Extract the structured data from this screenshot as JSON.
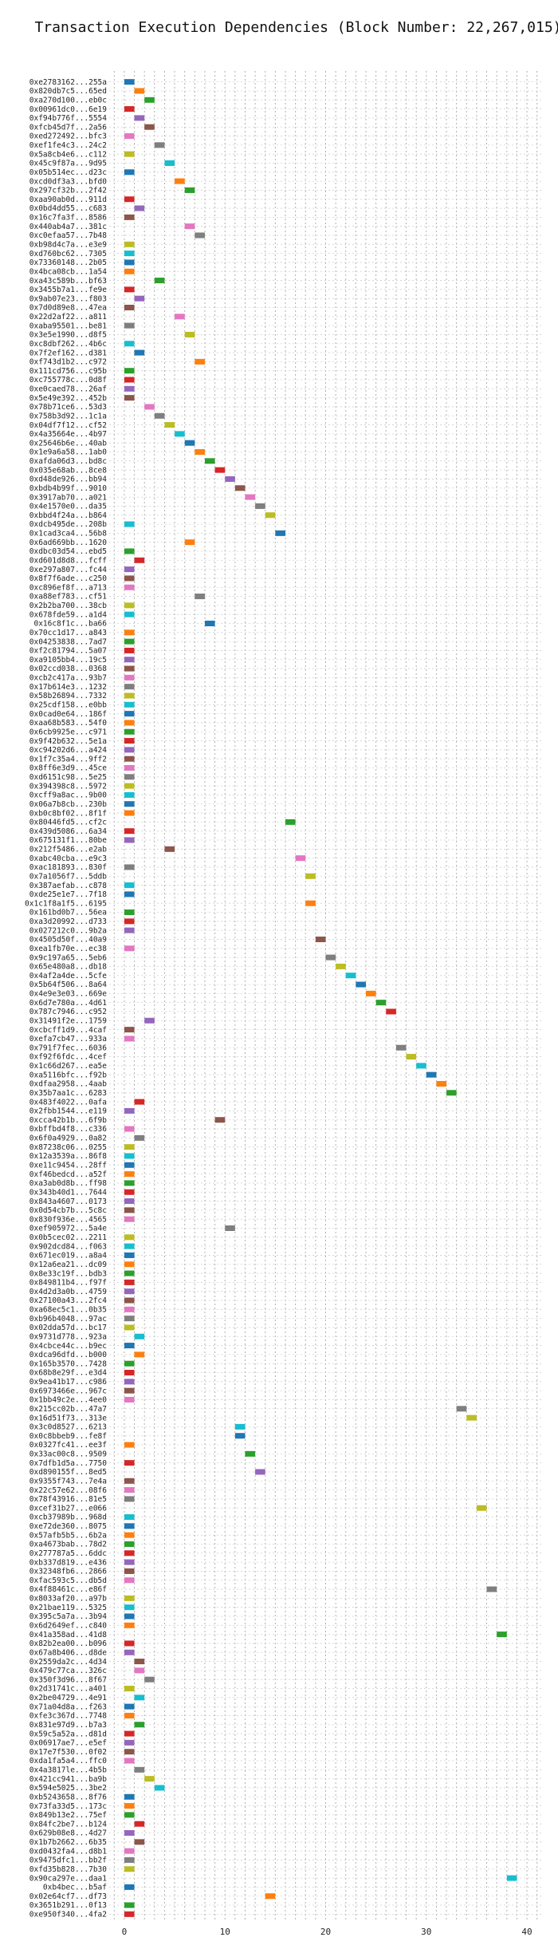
{
  "chart_data": {
    "type": "bar",
    "orientation": "horizontal",
    "title": "Transaction Execution Dependencies (Block Number: 22,267,015)",
    "xlabel": "",
    "ylabel": "",
    "xlim": [
      -1.5,
      41.5
    ],
    "xticks": [
      0,
      10,
      20,
      30,
      40
    ],
    "grid": true,
    "palette": [
      "#1f77b4",
      "#ff7f0e",
      "#2ca02c",
      "#d62728",
      "#9467bd",
      "#8c564b",
      "#e377c2",
      "#7f7f7f",
      "#bcbd22",
      "#17becf"
    ],
    "transactions": [
      {
        "hash": "0xe2783162...255a",
        "start": 0,
        "end": 1
      },
      {
        "hash": "0x820db7c5...65ed",
        "start": 1,
        "end": 2
      },
      {
        "hash": "0xa270d100...eb0c",
        "start": 2,
        "end": 3
      },
      {
        "hash": "0x00961dc0...6e19",
        "start": 0,
        "end": 1
      },
      {
        "hash": "0xf94b776f...5554",
        "start": 1,
        "end": 2
      },
      {
        "hash": "0xfcb45d7f...2a56",
        "start": 2,
        "end": 3
      },
      {
        "hash": "0xed272492...bfc3",
        "start": 0,
        "end": 1
      },
      {
        "hash": "0xef1fe4c3...24c2",
        "start": 3,
        "end": 4
      },
      {
        "hash": "0x5a8cb4e6...c112",
        "start": 0,
        "end": 1
      },
      {
        "hash": "0x45c9f87a...9d95",
        "start": 4,
        "end": 5
      },
      {
        "hash": "0x05b514ec...d23c",
        "start": 0,
        "end": 1
      },
      {
        "hash": "0xcd0df3a3...bfd0",
        "start": 5,
        "end": 6
      },
      {
        "hash": "0x297cf32b...2f42",
        "start": 6,
        "end": 7
      },
      {
        "hash": "0xaa90ab0d...911d",
        "start": 0,
        "end": 1
      },
      {
        "hash": "0x0bd4dd55...c683",
        "start": 1,
        "end": 2
      },
      {
        "hash": "0x16c7fa3f...8586",
        "start": 0,
        "end": 1
      },
      {
        "hash": "0x440ab4a7...381c",
        "start": 6,
        "end": 7
      },
      {
        "hash": "0xc0efaa57...7b48",
        "start": 7,
        "end": 8
      },
      {
        "hash": "0xb98d4c7a...e3e9",
        "start": 0,
        "end": 1
      },
      {
        "hash": "0xd760bc62...7305",
        "start": 0,
        "end": 1
      },
      {
        "hash": "0x73360148...2b05",
        "start": 0,
        "end": 1
      },
      {
        "hash": "0x4bca08cb...1a54",
        "start": 0,
        "end": 1
      },
      {
        "hash": "0xa43c589b...bf63",
        "start": 3,
        "end": 4
      },
      {
        "hash": "0x3455b7a1...fe9e",
        "start": 0,
        "end": 1
      },
      {
        "hash": "0x9ab07e23...f803",
        "start": 1,
        "end": 2
      },
      {
        "hash": "0x7d0d89e8...47ea",
        "start": 0,
        "end": 1
      },
      {
        "hash": "0x22d2af22...a811",
        "start": 5,
        "end": 6
      },
      {
        "hash": "0xaba95501...be81",
        "start": 0,
        "end": 1
      },
      {
        "hash": "0x3e5e1990...d8f5",
        "start": 6,
        "end": 7
      },
      {
        "hash": "0xc8dbf262...4b6c",
        "start": 0,
        "end": 1
      },
      {
        "hash": "0x7f2ef162...d381",
        "start": 1,
        "end": 2
      },
      {
        "hash": "0xf743d1b2...c972",
        "start": 7,
        "end": 8
      },
      {
        "hash": "0x111cd756...c95b",
        "start": 0,
        "end": 1
      },
      {
        "hash": "0xc755778c...0d8f",
        "start": 0,
        "end": 1
      },
      {
        "hash": "0xe0caed78...26af",
        "start": 0,
        "end": 1
      },
      {
        "hash": "0x5e49e392...452b",
        "start": 0,
        "end": 1
      },
      {
        "hash": "0x78b71ce6...53d3",
        "start": 2,
        "end": 3
      },
      {
        "hash": "0x758b3d92...1c1a",
        "start": 3,
        "end": 4
      },
      {
        "hash": "0x04df7f12...cf52",
        "start": 4,
        "end": 5
      },
      {
        "hash": "0x4a35664e...4b97",
        "start": 5,
        "end": 6
      },
      {
        "hash": "0x25646b6e...40ab",
        "start": 6,
        "end": 7
      },
      {
        "hash": "0x1e9a6a58...1ab0",
        "start": 7,
        "end": 8
      },
      {
        "hash": "0xafda06d3...bd8c",
        "start": 8,
        "end": 9
      },
      {
        "hash": "0x035e68ab...8ce8",
        "start": 9,
        "end": 10
      },
      {
        "hash": "0xd48de926...bb94",
        "start": 10,
        "end": 11
      },
      {
        "hash": "0xbdb4b99f...9010",
        "start": 11,
        "end": 12
      },
      {
        "hash": "0x3917ab70...a021",
        "start": 12,
        "end": 13
      },
      {
        "hash": "0x4e1570e0...da35",
        "start": 13,
        "end": 14
      },
      {
        "hash": "0xbbd4f24a...b864",
        "start": 14,
        "end": 15
      },
      {
        "hash": "0xdcb495de...208b",
        "start": 0,
        "end": 1
      },
      {
        "hash": "0x1cad3ca4...56b8",
        "start": 15,
        "end": 16
      },
      {
        "hash": "0x6ad669bb...1620",
        "start": 6,
        "end": 7
      },
      {
        "hash": "0xdbc03d54...ebd5",
        "start": 0,
        "end": 1
      },
      {
        "hash": "0xd601d8d8...fcff",
        "start": 1,
        "end": 2
      },
      {
        "hash": "0xe297a807...fc44",
        "start": 0,
        "end": 1
      },
      {
        "hash": "0x8f7f6ade...c250",
        "start": 0,
        "end": 1
      },
      {
        "hash": "0xc896ef8f...a713",
        "start": 0,
        "end": 1
      },
      {
        "hash": "0xa88ef783...cf51",
        "start": 7,
        "end": 8
      },
      {
        "hash": "0x2b2ba700...38cb",
        "start": 0,
        "end": 1
      },
      {
        "hash": "0x678fde59...a1d4",
        "start": 0,
        "end": 1
      },
      {
        "hash": "0x16c8f1c...ba66",
        "start": 8,
        "end": 9
      },
      {
        "hash": "0x70cc1d17...a843",
        "start": 0,
        "end": 1
      },
      {
        "hash": "0x04253838...7ad7",
        "start": 0,
        "end": 1
      },
      {
        "hash": "0xf2c81794...5a07",
        "start": 0,
        "end": 1
      },
      {
        "hash": "0xa9105bb4...19c5",
        "start": 0,
        "end": 1
      },
      {
        "hash": "0x02ccd038...0368",
        "start": 0,
        "end": 1
      },
      {
        "hash": "0xcb2c417a...93b7",
        "start": 0,
        "end": 1
      },
      {
        "hash": "0x17b614e3...1232",
        "start": 0,
        "end": 1
      },
      {
        "hash": "0x58b26894...7332",
        "start": 0,
        "end": 1
      },
      {
        "hash": "0x25cdf158...e0bb",
        "start": 0,
        "end": 1
      },
      {
        "hash": "0x0cad0e64...186f",
        "start": 0,
        "end": 1
      },
      {
        "hash": "0xaa68b583...54f0",
        "start": 0,
        "end": 1
      },
      {
        "hash": "0x6cb9925e...c971",
        "start": 0,
        "end": 1
      },
      {
        "hash": "0x9f42b632...5e1a",
        "start": 0,
        "end": 1
      },
      {
        "hash": "0xc94202d6...a424",
        "start": 0,
        "end": 1
      },
      {
        "hash": "0x1f7c35a4...9ff2",
        "start": 0,
        "end": 1
      },
      {
        "hash": "0x8ff6e3d9...45ce",
        "start": 0,
        "end": 1
      },
      {
        "hash": "0xd6151c98...5e25",
        "start": 0,
        "end": 1
      },
      {
        "hash": "0x394398c8...5972",
        "start": 0,
        "end": 1
      },
      {
        "hash": "0xcff9a8ac...9b00",
        "start": 0,
        "end": 1
      },
      {
        "hash": "0x06a7b8cb...230b",
        "start": 0,
        "end": 1
      },
      {
        "hash": "0xb0c8bf02...8f1f",
        "start": 0,
        "end": 1
      },
      {
        "hash": "0x80446fd5...cf2c",
        "start": 16,
        "end": 17
      },
      {
        "hash": "0x439d5086...6a34",
        "start": 0,
        "end": 1
      },
      {
        "hash": "0x675131f1...80be",
        "start": 0,
        "end": 1
      },
      {
        "hash": "0x212f5486...e2ab",
        "start": 4,
        "end": 5
      },
      {
        "hash": "0xabc40cba...e9c3",
        "start": 17,
        "end": 18
      },
      {
        "hash": "0xac181893...830f",
        "start": 0,
        "end": 1
      },
      {
        "hash": "0x7a1056f7...5ddb",
        "start": 18,
        "end": 19
      },
      {
        "hash": "0x387aefab...c878",
        "start": 0,
        "end": 1
      },
      {
        "hash": "0xde25e1e7...7f18",
        "start": 0,
        "end": 1
      },
      {
        "hash": "0x1c1f8a1f5...6195",
        "start": 18,
        "end": 19
      },
      {
        "hash": "0x161bd0b7...56ea",
        "start": 0,
        "end": 1
      },
      {
        "hash": "0xa3d20992...d733",
        "start": 0,
        "end": 1
      },
      {
        "hash": "0x027212c0...9b2a",
        "start": 0,
        "end": 1
      },
      {
        "hash": "0x4505d50f...40a9",
        "start": 19,
        "end": 20
      },
      {
        "hash": "0xea1fb70e...ec38",
        "start": 0,
        "end": 1
      },
      {
        "hash": "0x9c197a65...5eb6",
        "start": 20,
        "end": 21
      },
      {
        "hash": "0x65e480a8...db18",
        "start": 21,
        "end": 22
      },
      {
        "hash": "0x4af2a4de...5cfe",
        "start": 22,
        "end": 23
      },
      {
        "hash": "0x5b64f506...8a64",
        "start": 23,
        "end": 24
      },
      {
        "hash": "0x4e9e3e03...669e",
        "start": 24,
        "end": 25
      },
      {
        "hash": "0x6d7e780a...4d61",
        "start": 25,
        "end": 26
      },
      {
        "hash": "0x787c7946...c952",
        "start": 26,
        "end": 27
      },
      {
        "hash": "0x31491f2e...1759",
        "start": 2,
        "end": 3
      },
      {
        "hash": "0xcbcff1d9...4caf",
        "start": 0,
        "end": 1
      },
      {
        "hash": "0xefa7cb47...933a",
        "start": 0,
        "end": 1
      },
      {
        "hash": "0x791f7fec...6036",
        "start": 27,
        "end": 28
      },
      {
        "hash": "0xf92f6fdc...4cef",
        "start": 28,
        "end": 29
      },
      {
        "hash": "0x1c66d267...ea5e",
        "start": 29,
        "end": 30
      },
      {
        "hash": "0xa5116bfc...f92b",
        "start": 30,
        "end": 31
      },
      {
        "hash": "0xdfaa2958...4aab",
        "start": 31,
        "end": 32
      },
      {
        "hash": "0x35b7aa1c...6283",
        "start": 32,
        "end": 33
      },
      {
        "hash": "0x483f4022...0afa",
        "start": 1,
        "end": 2
      },
      {
        "hash": "0x2fbb1544...e119",
        "start": 0,
        "end": 1
      },
      {
        "hash": "0xcca42b1b...6f9b",
        "start": 9,
        "end": 10
      },
      {
        "hash": "0xbffbd4f8...c336",
        "start": 0,
        "end": 1
      },
      {
        "hash": "0x6f0a4929...0a82",
        "start": 1,
        "end": 2
      },
      {
        "hash": "0x87238c06...0255",
        "start": 0,
        "end": 1
      },
      {
        "hash": "0x12a3539a...86f8",
        "start": 0,
        "end": 1
      },
      {
        "hash": "0xe11c9454...28ff",
        "start": 0,
        "end": 1
      },
      {
        "hash": "0xf46bedcd...a52f",
        "start": 0,
        "end": 1
      },
      {
        "hash": "0xa3ab0d8b...ff98",
        "start": 0,
        "end": 1
      },
      {
        "hash": "0x343b40d1...7644",
        "start": 0,
        "end": 1
      },
      {
        "hash": "0x843a4607...0173",
        "start": 0,
        "end": 1
      },
      {
        "hash": "0x0d54cb7b...5c8c",
        "start": 0,
        "end": 1
      },
      {
        "hash": "0x830f936e...4565",
        "start": 0,
        "end": 1
      },
      {
        "hash": "0xef905972...5a4e",
        "start": 10,
        "end": 11
      },
      {
        "hash": "0x0b5cec02...2211",
        "start": 0,
        "end": 1
      },
      {
        "hash": "0x902dcd84...f063",
        "start": 0,
        "end": 1
      },
      {
        "hash": "0x671ec019...a8a4",
        "start": 0,
        "end": 1
      },
      {
        "hash": "0x12a6ea21...dc09",
        "start": 0,
        "end": 1
      },
      {
        "hash": "0x8e33c19f...bdb3",
        "start": 0,
        "end": 1
      },
      {
        "hash": "0x849811b4...f97f",
        "start": 0,
        "end": 1
      },
      {
        "hash": "0x4d2d3a0b...4759",
        "start": 0,
        "end": 1
      },
      {
        "hash": "0x27100a43...2fc4",
        "start": 0,
        "end": 1
      },
      {
        "hash": "0xa68ec5c1...0b35",
        "start": 0,
        "end": 1
      },
      {
        "hash": "0xb96b4048...97ac",
        "start": 0,
        "end": 1
      },
      {
        "hash": "0x02dda57d...bc17",
        "start": 0,
        "end": 1
      },
      {
        "hash": "0x9731d778...923a",
        "start": 1,
        "end": 2
      },
      {
        "hash": "0x4cbce44c...b9ec",
        "start": 0,
        "end": 1
      },
      {
        "hash": "0xdca96dfd...b000",
        "start": 1,
        "end": 2
      },
      {
        "hash": "0x165b3570...7428",
        "start": 0,
        "end": 1
      },
      {
        "hash": "0x68b8e29f...e3d4",
        "start": 0,
        "end": 1
      },
      {
        "hash": "0x9ea41b17...c986",
        "start": 0,
        "end": 1
      },
      {
        "hash": "0x6973466e...967c",
        "start": 0,
        "end": 1
      },
      {
        "hash": "0x1bb49c2e...4ee0",
        "start": 0,
        "end": 1
      },
      {
        "hash": "0x215cc02b...47a7",
        "start": 33,
        "end": 34
      },
      {
        "hash": "0x16d51f73...313e",
        "start": 34,
        "end": 35
      },
      {
        "hash": "0x3c0d8527...6213",
        "start": 11,
        "end": 12
      },
      {
        "hash": "0x0c8bbeb9...fe8f",
        "start": 11,
        "end": 12
      },
      {
        "hash": "0x0327fc41...ee3f",
        "start": 0,
        "end": 1
      },
      {
        "hash": "0x33ac00c8...9509",
        "start": 12,
        "end": 13
      },
      {
        "hash": "0x7dfb1d5a...7750",
        "start": 0,
        "end": 1
      },
      {
        "hash": "0xd890155f...8ed5",
        "start": 13,
        "end": 14
      },
      {
        "hash": "0x9355f743...7e4a",
        "start": 0,
        "end": 1
      },
      {
        "hash": "0x22c57e62...08f6",
        "start": 0,
        "end": 1
      },
      {
        "hash": "0x78f43916...81e5",
        "start": 0,
        "end": 1
      },
      {
        "hash": "0xcef31b27...e066",
        "start": 35,
        "end": 36
      },
      {
        "hash": "0xcb37989b...968d",
        "start": 0,
        "end": 1
      },
      {
        "hash": "0xe72de360...8075",
        "start": 0,
        "end": 1
      },
      {
        "hash": "0x57afb5b5...6b2a",
        "start": 0,
        "end": 1
      },
      {
        "hash": "0xa4673bab...78d2",
        "start": 0,
        "end": 1
      },
      {
        "hash": "0x277787a5...6ddc",
        "start": 0,
        "end": 1
      },
      {
        "hash": "0xb337d819...e436",
        "start": 0,
        "end": 1
      },
      {
        "hash": "0x32348fb6...2866",
        "start": 0,
        "end": 1
      },
      {
        "hash": "0xfac593c5...db5d",
        "start": 0,
        "end": 1
      },
      {
        "hash": "0x4f88461c...e86f",
        "start": 36,
        "end": 37
      },
      {
        "hash": "0x8033af20...a97b",
        "start": 0,
        "end": 1
      },
      {
        "hash": "0x21bae119...5325",
        "start": 0,
        "end": 1
      },
      {
        "hash": "0x395c5a7a...3b94",
        "start": 0,
        "end": 1
      },
      {
        "hash": "0x6d2649ef...c840",
        "start": 0,
        "end": 1
      },
      {
        "hash": "0x41a358ad...41d8",
        "start": 37,
        "end": 38
      },
      {
        "hash": "0x82b2ea00...b096",
        "start": 0,
        "end": 1
      },
      {
        "hash": "0x67a8b406...d8de",
        "start": 0,
        "end": 1
      },
      {
        "hash": "0x2559da2c...4d34",
        "start": 1,
        "end": 2
      },
      {
        "hash": "0x479c77ca...326c",
        "start": 1,
        "end": 2
      },
      {
        "hash": "0x350f3d96...8f67",
        "start": 2,
        "end": 3
      },
      {
        "hash": "0x2d31741c...a401",
        "start": 0,
        "end": 1
      },
      {
        "hash": "0x2be04729...4e91",
        "start": 1,
        "end": 2
      },
      {
        "hash": "0x71a04d8a...f263",
        "start": 0,
        "end": 1
      },
      {
        "hash": "0xfe3c367d...7748",
        "start": 0,
        "end": 1
      },
      {
        "hash": "0x831e97d9...b7a3",
        "start": 1,
        "end": 2
      },
      {
        "hash": "0x59c5a52a...d81d",
        "start": 0,
        "end": 1
      },
      {
        "hash": "0x06917ae7...e5ef",
        "start": 0,
        "end": 1
      },
      {
        "hash": "0x17e7f530...0f02",
        "start": 0,
        "end": 1
      },
      {
        "hash": "0xda1fa5a4...ffc0",
        "start": 0,
        "end": 1
      },
      {
        "hash": "0x4a3817le...4b5b",
        "start": 1,
        "end": 2
      },
      {
        "hash": "0x421cc941...ba9b",
        "start": 2,
        "end": 3
      },
      {
        "hash": "0x594e5025...3be2",
        "start": 3,
        "end": 4
      },
      {
        "hash": "0xb5243658...8f76",
        "start": 0,
        "end": 1
      },
      {
        "hash": "0x73fa33d5...173c",
        "start": 0,
        "end": 1
      },
      {
        "hash": "0x849b13e2...75ef",
        "start": 0,
        "end": 1
      },
      {
        "hash": "0x84fc2be7...b124",
        "start": 1,
        "end": 2
      },
      {
        "hash": "0x629b08e8...4d27",
        "start": 0,
        "end": 1
      },
      {
        "hash": "0x1b7b2662...6b35",
        "start": 1,
        "end": 2
      },
      {
        "hash": "0xd0432fa4...d8b1",
        "start": 0,
        "end": 1
      },
      {
        "hash": "0x9475dfc1...bb2f",
        "start": 0,
        "end": 1
      },
      {
        "hash": "0xfd35b828...7b30",
        "start": 0,
        "end": 1
      },
      {
        "hash": "0x90ca297e...daa1",
        "start": 38,
        "end": 39
      },
      {
        "hash": "0xb4bec...b5af",
        "start": 0,
        "end": 1
      },
      {
        "hash": "0x02e64cf7...df73",
        "start": 14,
        "end": 15
      },
      {
        "hash": "0x3651b291...0f13",
        "start": 0,
        "end": 1
      },
      {
        "hash": "0xe950f340...4fa2",
        "start": 0,
        "end": 1
      }
    ]
  }
}
